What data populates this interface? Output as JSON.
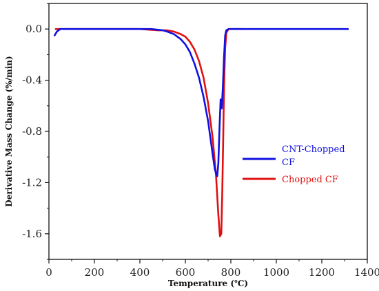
{
  "chart_data": {
    "type": "line",
    "xlabel": "Temperature (℃)",
    "ylabel": "Derivative Mass Change (%/min)",
    "xlim": [
      0,
      1400
    ],
    "ylim": [
      -1.8,
      0.2
    ],
    "xticks": [
      0,
      200,
      400,
      600,
      800,
      1000,
      1200,
      1400
    ],
    "yticks": [
      0.0,
      -0.4,
      -0.8,
      -1.2,
      -1.6
    ],
    "ytick_labels": [
      "0.0",
      "-0.4",
      "-0.8",
      "-1.2",
      "-1.6"
    ],
    "grid": false,
    "legend_position": "right-middle",
    "series": [
      {
        "name": "CNT-Chopped CF",
        "color": "#1010e0",
        "x": [
          25,
          35,
          50,
          100,
          200,
          300,
          400,
          450,
          500,
          520,
          550,
          580,
          600,
          620,
          640,
          660,
          680,
          700,
          710,
          720,
          730,
          740,
          745,
          750,
          755,
          760,
          765,
          770,
          775,
          780,
          790,
          800,
          900,
          1000,
          1100,
          1200,
          1300,
          1315
        ],
        "y": [
          -0.05,
          -0.02,
          0.0,
          0.0,
          0.0,
          0.0,
          0.0,
          0.0,
          -0.01,
          -0.02,
          -0.04,
          -0.08,
          -0.12,
          -0.18,
          -0.27,
          -0.38,
          -0.53,
          -0.72,
          -0.85,
          -0.98,
          -1.1,
          -1.15,
          -1.05,
          -0.78,
          -0.55,
          -0.62,
          -0.45,
          -0.22,
          -0.05,
          -0.01,
          0.0,
          0.0,
          0.0,
          0.0,
          0.0,
          0.0,
          0.0,
          0.0
        ]
      },
      {
        "name": "Chopped CF",
        "color": "#e01010",
        "x": [
          30,
          100,
          200,
          300,
          400,
          480,
          520,
          550,
          580,
          600,
          620,
          640,
          660,
          680,
          700,
          720,
          735,
          745,
          752,
          758,
          762,
          766,
          770,
          775,
          780,
          790,
          800,
          850
        ],
        "y": [
          0.0,
          0.0,
          0.0,
          0.0,
          0.0,
          -0.01,
          -0.01,
          -0.02,
          -0.04,
          -0.06,
          -0.1,
          -0.16,
          -0.25,
          -0.38,
          -0.58,
          -0.85,
          -1.15,
          -1.45,
          -1.62,
          -1.6,
          -1.3,
          -0.9,
          -0.45,
          -0.15,
          -0.03,
          0.0,
          0.0,
          0.0
        ]
      }
    ]
  },
  "legend": {
    "items": [
      {
        "line1": "CNT-Chopped",
        "line2": "CF",
        "color": "#1010e0"
      },
      {
        "line1": "Chopped CF",
        "line2": "",
        "color": "#e01010"
      }
    ]
  }
}
